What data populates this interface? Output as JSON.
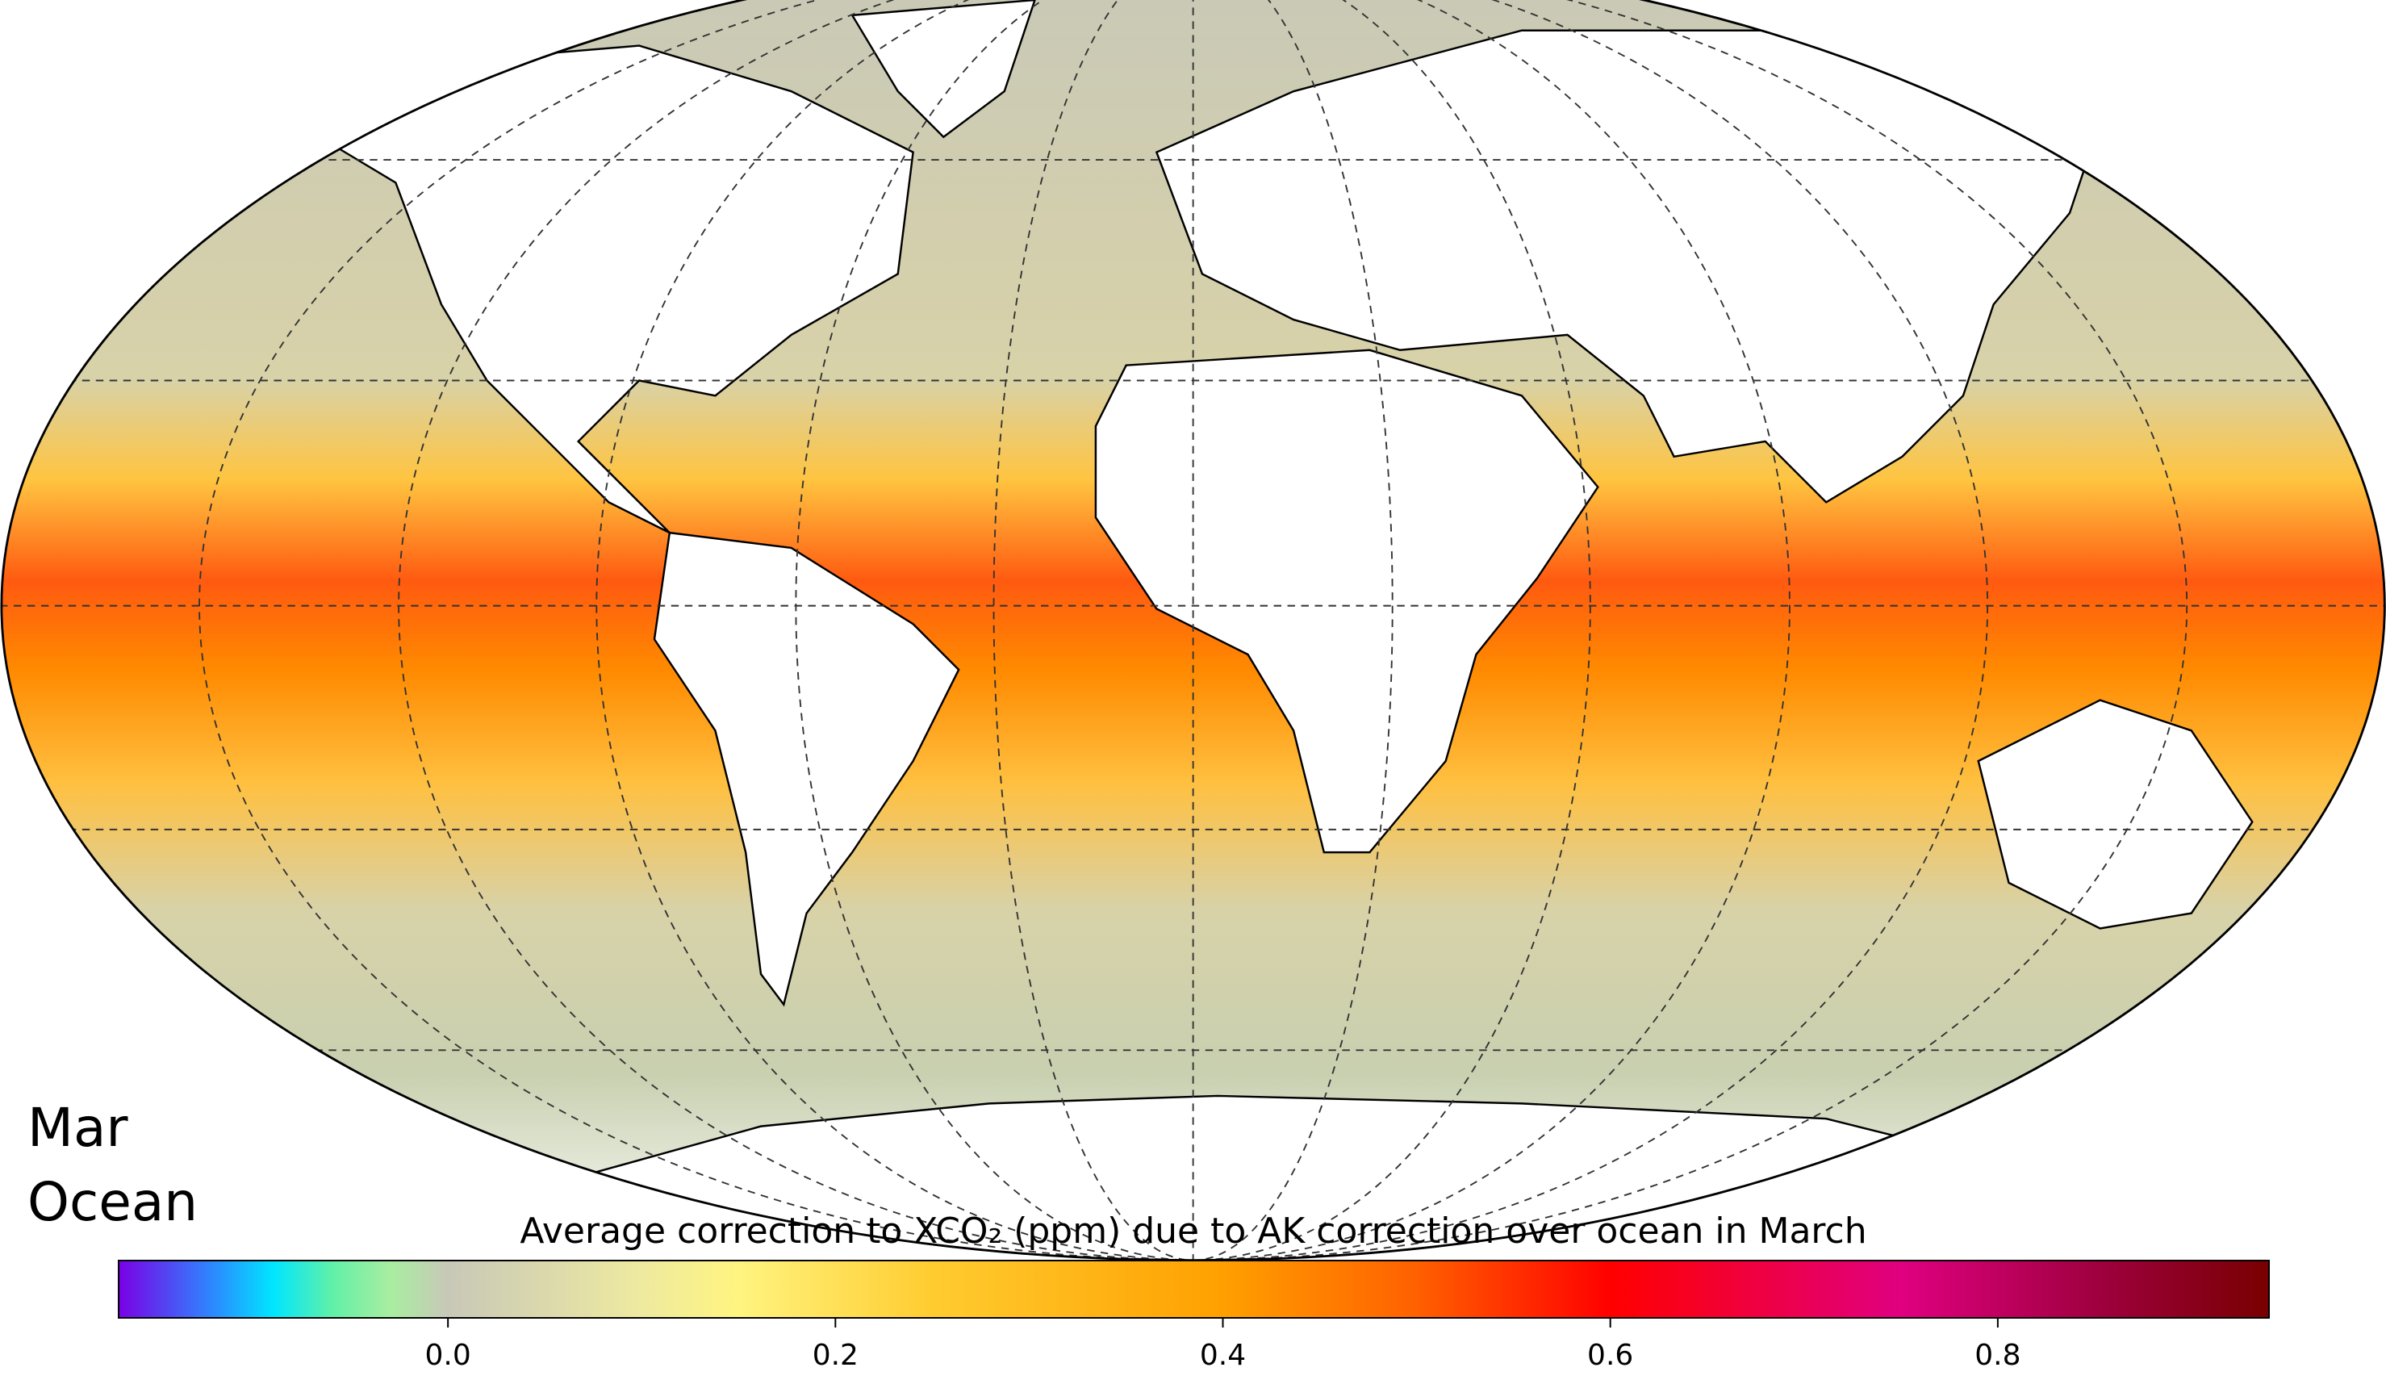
{
  "map": {
    "label_month": "Mar",
    "label_domain": "Ocean"
  },
  "colorbar": {
    "title": "Average correction to XCO₂ (ppm) due to AK correction over ocean in March",
    "lim": [
      -0.17,
      0.94
    ],
    "ticks": [
      {
        "value": 0,
        "label": "0.0"
      },
      {
        "value": 0.2,
        "label": "0.2"
      },
      {
        "value": 0.4,
        "label": "0.4"
      },
      {
        "value": 0.6,
        "label": "0.6"
      },
      {
        "value": 0.8,
        "label": "0.8"
      }
    ],
    "colormap": [
      {
        "value": -0.17,
        "color": "#7a00e6"
      },
      {
        "value": -0.12,
        "color": "#2a8cff"
      },
      {
        "value": -0.09,
        "color": "#00e6ff"
      },
      {
        "value": -0.06,
        "color": "#60f0a8"
      },
      {
        "value": -0.03,
        "color": "#a8eea0"
      },
      {
        "value": 0.0,
        "color": "#c8c8b8"
      },
      {
        "value": 0.1,
        "color": "#eeeaa0"
      },
      {
        "value": 0.15,
        "color": "#fff480"
      },
      {
        "value": 0.25,
        "color": "#ffcc30"
      },
      {
        "value": 0.4,
        "color": "#ffa000"
      },
      {
        "value": 0.5,
        "color": "#ff6000"
      },
      {
        "value": 0.6,
        "color": "#ff0000"
      },
      {
        "value": 0.75,
        "color": "#e00080"
      },
      {
        "value": 0.85,
        "color": "#a00040"
      },
      {
        "value": 0.94,
        "color": "#780000"
      }
    ]
  }
}
